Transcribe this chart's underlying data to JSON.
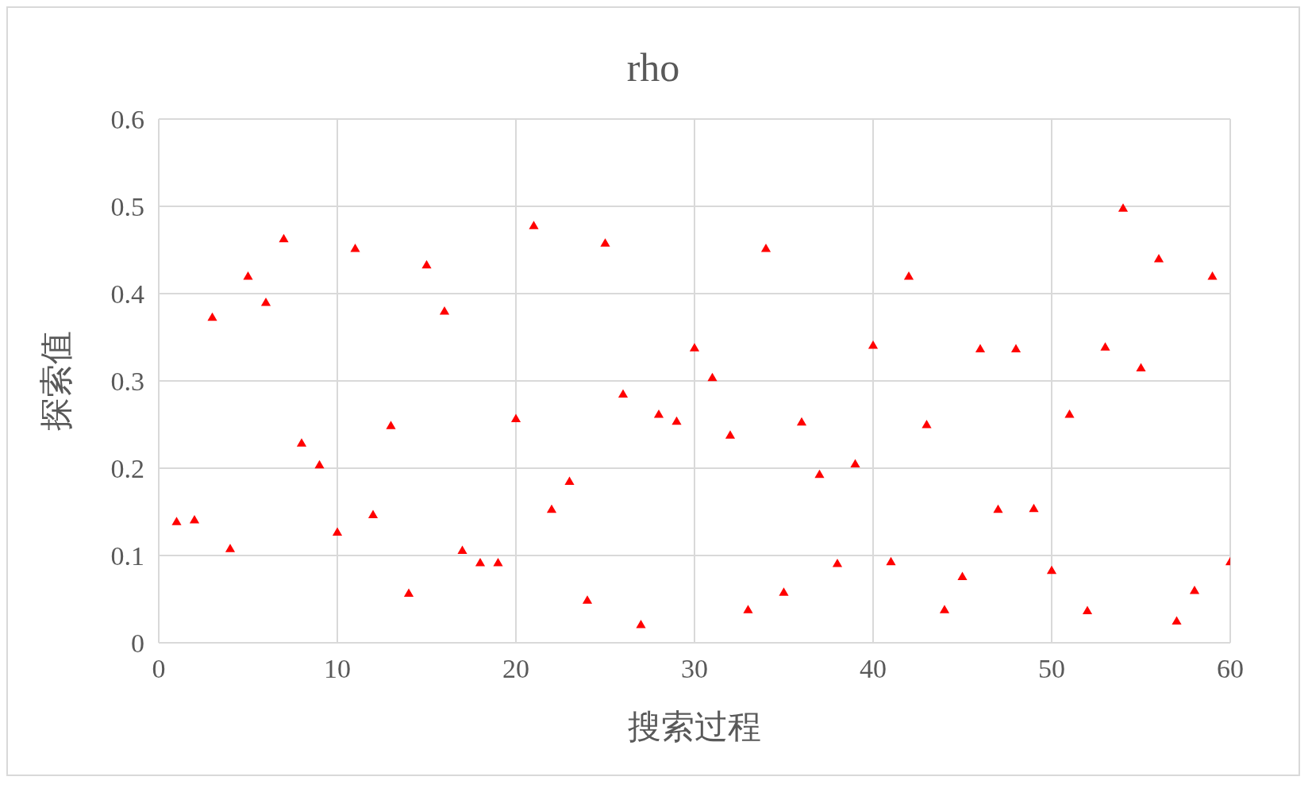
{
  "chart_data": {
    "type": "scatter",
    "title": "rho",
    "xlabel": "搜索过程",
    "ylabel": "探索值",
    "x": [
      1,
      2,
      3,
      4,
      5,
      6,
      7,
      8,
      9,
      10,
      11,
      12,
      13,
      14,
      15,
      16,
      17,
      18,
      19,
      20,
      21,
      22,
      23,
      24,
      25,
      26,
      27,
      28,
      29,
      30,
      31,
      32,
      33,
      34,
      35,
      36,
      37,
      38,
      39,
      40,
      41,
      42,
      43,
      44,
      45,
      46,
      47,
      48,
      49,
      50,
      51,
      52,
      53,
      54,
      55,
      56,
      57,
      58,
      59,
      60
    ],
    "series": [
      {
        "color": "#ff0000",
        "values": [
          0.138,
          0.14,
          0.372,
          0.107,
          0.419,
          0.389,
          0.462,
          0.228,
          0.203,
          0.126,
          0.451,
          0.146,
          0.248,
          0.056,
          0.432,
          0.379,
          0.105,
          0.091,
          0.091,
          0.256,
          0.477,
          0.152,
          0.184,
          0.048,
          0.457,
          0.284,
          0.02,
          0.261,
          0.253,
          0.337,
          0.303,
          0.237,
          0.037,
          0.451,
          0.057,
          0.252,
          0.192,
          0.09,
          0.204,
          0.34,
          0.092,
          0.419,
          0.249,
          0.037,
          0.075,
          0.336,
          0.152,
          0.336,
          0.153,
          0.082,
          0.261,
          0.036,
          0.338,
          0.497,
          0.314,
          0.439,
          0.024,
          0.059,
          0.419,
          0.092
        ]
      }
    ],
    "xlim": [
      0,
      60
    ],
    "xticks": [
      0,
      10,
      20,
      30,
      40,
      50,
      60
    ],
    "ylim": [
      0,
      0.6
    ],
    "yticks": [
      0,
      0.1,
      0.2,
      0.3,
      0.4,
      0.5,
      0.6
    ],
    "grid": true,
    "marker": "triangle"
  }
}
